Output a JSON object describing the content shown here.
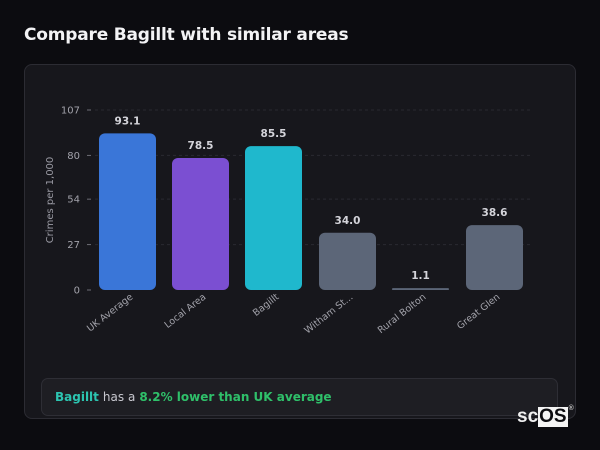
{
  "page": {
    "title": "Compare Bagillt with similar areas"
  },
  "callout": {
    "area": "Bagillt",
    "mid": "has a",
    "delta": "8.2% lower than UK average"
  },
  "logo": {
    "prefix": "sc",
    "inverted": "OS",
    "mark": "®"
  },
  "colors": {
    "uk_average": "#3a76d8",
    "local_area": "#7b4fd2",
    "bagillt": "#1fb8cd",
    "others": "#5c6678",
    "highlight_text": "#2cc4b0",
    "delta_text": "#2fc06a"
  },
  "chart_data": {
    "type": "bar",
    "title": "Compare Bagillt with similar areas",
    "xlabel": "",
    "ylabel": "Crimes per 1,000",
    "ylim": [
      0,
      107
    ],
    "yticks": [
      0,
      27,
      54,
      80,
      107
    ],
    "grid": true,
    "legend": null,
    "categories": [
      "UK Average",
      "Local Area",
      "Bagillt",
      "Witham St...",
      "Rural Bolton",
      "Great Glen"
    ],
    "values": [
      93.1,
      78.5,
      85.5,
      34.0,
      1.1,
      38.6
    ],
    "value_labels": [
      "93.1",
      "78.5",
      "85.5",
      "34.0",
      "1.1",
      "38.6"
    ],
    "bar_colors": [
      "#3a76d8",
      "#7b4fd2",
      "#1fb8cd",
      "#5c6678",
      "#5c6678",
      "#5c6678"
    ]
  }
}
